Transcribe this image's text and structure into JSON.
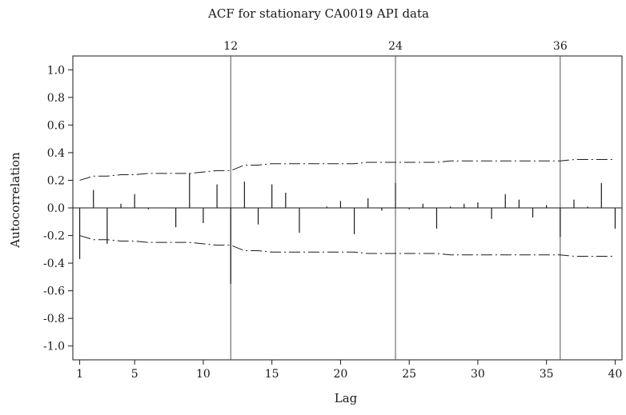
{
  "chart_data": {
    "type": "bar",
    "title": "ACF for stationary CA0019 API data",
    "xlabel": "Lag",
    "ylabel": "Autocorrelation",
    "xlim": [
      0.5,
      40.5
    ],
    "ylim": [
      -1.1,
      1.1
    ],
    "x_ticks": [
      1,
      5,
      10,
      15,
      20,
      25,
      30,
      35,
      40
    ],
    "y_ticks": [
      1.0,
      0.8,
      0.6,
      0.4,
      0.2,
      0.0,
      -0.2,
      -0.4,
      -0.6,
      -0.8,
      -1.0
    ],
    "y_tick_labels": [
      "1.0",
      "0.8",
      "0.6",
      "0.4",
      "0.2",
      "0.0",
      "-0.2",
      "-0.4",
      "-0.6",
      "-0.8",
      "-1.0"
    ],
    "seasonal_lags": [
      12,
      24,
      36
    ],
    "seasonal_labels": [
      "12",
      "24",
      "36"
    ],
    "lags": [
      1,
      2,
      3,
      4,
      5,
      6,
      7,
      8,
      9,
      10,
      11,
      12,
      13,
      14,
      15,
      16,
      17,
      18,
      19,
      20,
      21,
      22,
      23,
      24,
      25,
      26,
      27,
      28,
      29,
      30,
      31,
      32,
      33,
      34,
      35,
      36,
      37,
      38,
      39,
      40
    ],
    "acf": [
      -0.37,
      0.13,
      -0.26,
      0.03,
      0.1,
      -0.01,
      0.0,
      -0.14,
      0.25,
      -0.11,
      0.17,
      -0.55,
      0.19,
      -0.12,
      0.17,
      0.11,
      -0.18,
      0.0,
      0.01,
      0.05,
      -0.19,
      0.07,
      -0.02,
      0.18,
      -0.01,
      0.03,
      -0.15,
      0.01,
      0.03,
      0.04,
      -0.08,
      0.1,
      0.06,
      -0.07,
      0.02,
      -0.21,
      0.06,
      0.01,
      0.18,
      -0.15
    ],
    "confidence_upper": [
      0.2,
      0.23,
      0.23,
      0.24,
      0.24,
      0.25,
      0.25,
      0.25,
      0.25,
      0.26,
      0.27,
      0.27,
      0.31,
      0.31,
      0.32,
      0.32,
      0.32,
      0.32,
      0.32,
      0.32,
      0.32,
      0.33,
      0.33,
      0.33,
      0.33,
      0.33,
      0.33,
      0.34,
      0.34,
      0.34,
      0.34,
      0.34,
      0.34,
      0.34,
      0.34,
      0.34,
      0.35,
      0.35,
      0.35,
      0.35
    ],
    "grid": false,
    "colors": {
      "bars": "#1a1a1a",
      "confidence": "#1a1a1a",
      "seasonal_lines": "#555555",
      "axes": "#1a1a1a"
    }
  }
}
